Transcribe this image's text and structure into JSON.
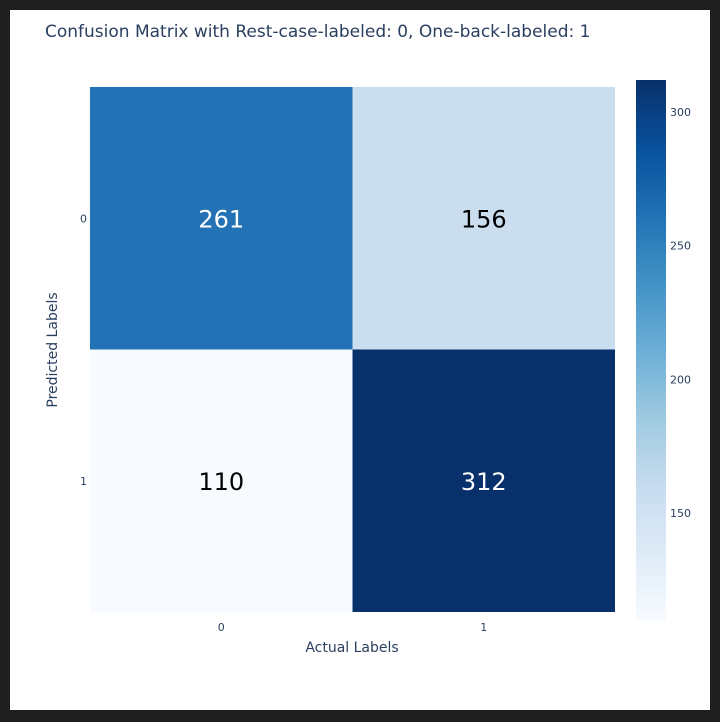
{
  "chart_data": {
    "type": "heatmap",
    "title": "Confusion Matrix with Rest-case-labeled: 0, One-back-labeled: 1",
    "xlabel": "Actual Labels",
    "ylabel": "Predicted Labels",
    "x_categories": [
      "0",
      "1"
    ],
    "y_categories": [
      "0",
      "1"
    ],
    "z": [
      [
        261,
        156
      ],
      [
        110,
        312
      ]
    ],
    "colorscale": "Blues",
    "zrange": [
      110,
      312
    ],
    "colorbar_ticks": [
      "150",
      "200",
      "250",
      "300"
    ],
    "colorbar_tick_values": [
      150,
      200,
      250,
      300
    ]
  }
}
